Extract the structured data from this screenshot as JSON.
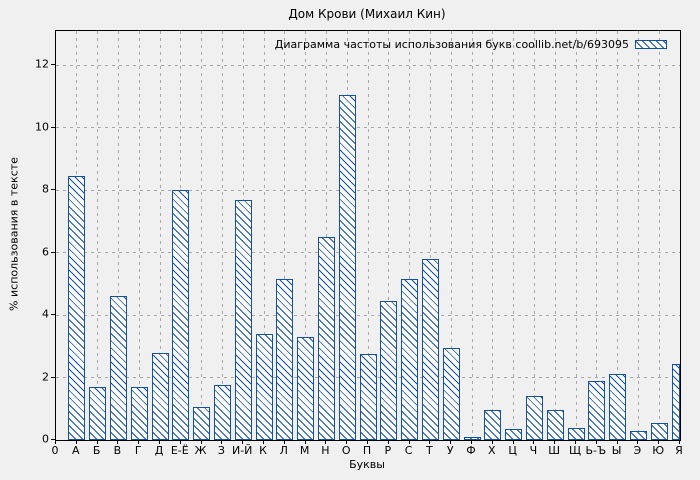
{
  "axes": {
    "origin_label": "0"
  },
  "colors": {
    "bar": "#1450a5",
    "background": "#f0f0f0",
    "grid": "#a8a8a8",
    "axis": "#000000"
  },
  "chart_data": {
    "type": "bar",
    "title": "Дом Крови (Михаил Кин)",
    "legend": "Диаграмма частоты использования букв coollib.net/b/693095",
    "legend_position": "top-right-inside",
    "xlabel": "Буквы",
    "ylabel": "% использования в тексте",
    "ylim": [
      0,
      13.1
    ],
    "y_ticks": [
      0,
      2,
      4,
      6,
      8,
      10,
      12
    ],
    "grid": true,
    "hatch": "diagonal-backslash",
    "bar_fill": "white-with-blue-hatch",
    "categories": [
      "А",
      "Б",
      "В",
      "Г",
      "Д",
      "Е-Ё",
      "Ж",
      "З",
      "И-Й",
      "К",
      "Л",
      "М",
      "Н",
      "О",
      "П",
      "Р",
      "С",
      "Т",
      "У",
      "Ф",
      "Х",
      "Ц",
      "Ч",
      "Ш",
      "Щ",
      "Ь-Ъ",
      "Ы",
      "Э",
      "Ю",
      "Я"
    ],
    "values": [
      8.45,
      1.7,
      4.6,
      1.7,
      2.8,
      8.0,
      1.05,
      1.75,
      7.7,
      3.4,
      5.15,
      3.3,
      6.5,
      11.05,
      2.75,
      4.45,
      5.15,
      5.8,
      2.95,
      0.1,
      0.95,
      0.35,
      1.4,
      0.95,
      0.4,
      1.9,
      2.1,
      0.3,
      0.55,
      2.45
    ]
  }
}
